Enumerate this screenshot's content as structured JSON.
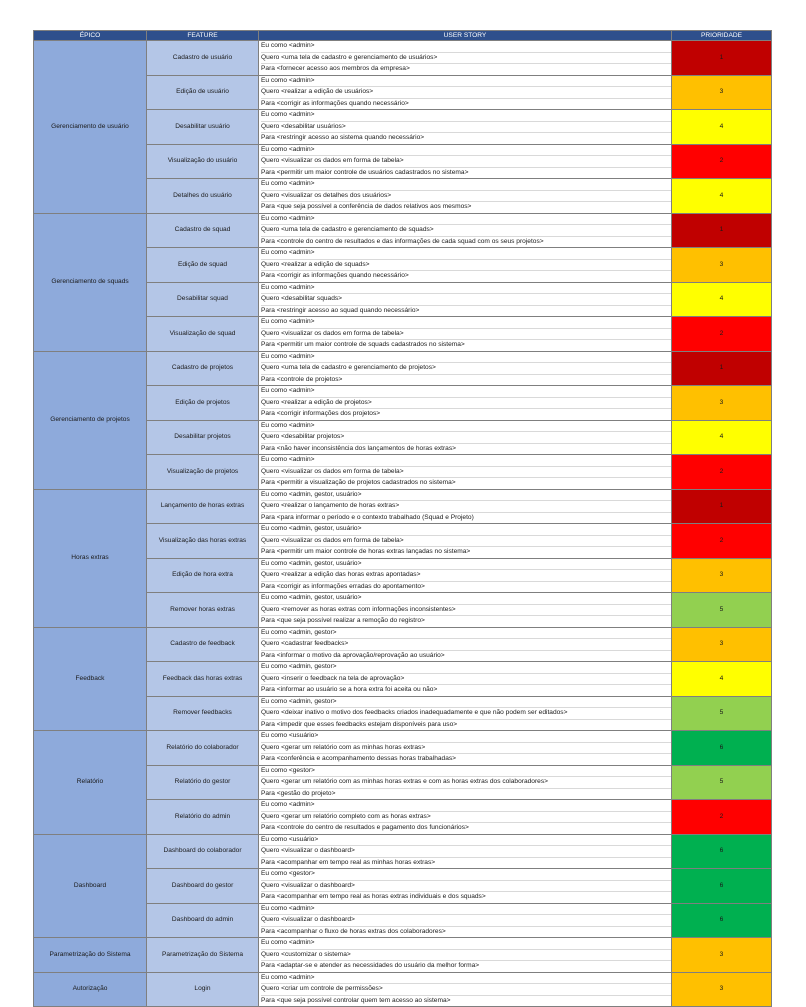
{
  "headers": {
    "epic": "ÉPICO",
    "feature": "FEATURE",
    "story": "USER STORY",
    "priority": "PRIORIDADE"
  },
  "priority_colors": {
    "1": "#c00000",
    "2": "#ff0000",
    "3": "#ffc000",
    "4": "#ffff00",
    "5": "#92d050",
    "6": "#00b050"
  },
  "epics": [
    {
      "name": "Gerenciamento de usuário",
      "items": [
        {
          "feature": "Cadastro de usuário",
          "who": "Eu como <admin>",
          "want": "Quero <uma tela de cadastro e gerenciamento de usuários>",
          "why": "Para <fornecer acesso aos membros da empresa>",
          "priority": "1"
        },
        {
          "feature": "Edição de usuário",
          "who": "Eu como <admin>",
          "want": "Quero <realizar a edição de usuários>",
          "why": "Para <corrigir as informações quando necessário>",
          "priority": "3"
        },
        {
          "feature": "Desabilitar usuário",
          "who": "Eu como <admin>",
          "want": "Quero <desabilitar usuários>",
          "why": "Para <restringir acesso ao sistema quando necessário>",
          "priority": "4"
        },
        {
          "feature": "Visualização do usuário",
          "who": "Eu como <admin>",
          "want": "Quero <visualizar os dados em forma de tabela>",
          "why": "Para <permitir um maior controle de usuários cadastrados no sistema>",
          "priority": "2"
        },
        {
          "feature": "Detalhes do usuário",
          "who": "Eu como <admin>",
          "want": "Quero <visualizar os detalhes dos usuários>",
          "why": "Para <que seja possível a conferência de dados relativos aos mesmos>",
          "priority": "4"
        }
      ]
    },
    {
      "name": "Gerenciamento de squads",
      "items": [
        {
          "feature": "Cadastro de squad",
          "who": "Eu como <admin>",
          "want": "Quero <uma tela de cadastro e gerenciamento de squads>",
          "why": "Para <controle do centro de resultados e das informações de cada squad com os seus projetos>",
          "priority": "1"
        },
        {
          "feature": "Edição de squad",
          "who": "Eu como <admin>",
          "want": "Quero <realizar a edição de squads>",
          "why": "Para <corrigir as informações quando necessário>",
          "priority": "3"
        },
        {
          "feature": "Desabilitar squad",
          "who": "Eu como <admin>",
          "want": "Quero <desabilitar squads>",
          "why": "Para <restringir acesso ao squad quando necessário>",
          "priority": "4"
        },
        {
          "feature": "Visualização de squad",
          "who": "Eu como <admin>",
          "want": "Quero <visualizar os dados em forma de tabela>",
          "why": "Para <permitir um maior controle de squads cadastrados no sistema>",
          "priority": "2"
        }
      ]
    },
    {
      "name": "Gerenciamento de projetos",
      "items": [
        {
          "feature": "Cadastro de projetos",
          "who": "Eu como <admin>",
          "want": "Quero <uma tela de cadastro e gerenciamento de projetos>",
          "why": "Para <controle de projetos>",
          "priority": "1"
        },
        {
          "feature": "Edição de projetos",
          "who": "Eu como <admin>",
          "want": "Quero <realizar a edição de projetos>",
          "why": "Para <corrigir informações dos projetos>",
          "priority": "3"
        },
        {
          "feature": "Desabilitar projetos",
          "who": "Eu como <admin>",
          "want": "Quero <desabilitar projetos>",
          "why": "Para <não haver inconsistência dos lançamentos de horas extras>",
          "priority": "4"
        },
        {
          "feature": "Visualização de projetos",
          "who": "Eu como <admin>",
          "want": "Quero <visualizar os dados em forma de tabela>",
          "why": "Para <permitir a visualização de projetos cadastrados no sistema>",
          "priority": "2"
        }
      ]
    },
    {
      "name": "Horas extras",
      "items": [
        {
          "feature": "Lançamento de horas extras",
          "who": "Eu como <admin, gestor, usuário>",
          "want": "Quero <realizar o lançamento de horas extras>",
          "why": "Para <para informar o período e o contexto trabalhado (Squad e Projeto)",
          "priority": "1"
        },
        {
          "feature": "Visualização das horas extras",
          "who": "Eu como <admin, gestor, usuário>",
          "want": "Quero <visualizar os dados em forma de tabela>",
          "why": "Para <permitir um maior controle de horas extras lançadas no sistema>",
          "priority": "2"
        },
        {
          "feature": "Edição de hora extra",
          "who": "Eu como <admin, gestor, usuário>",
          "want": "Quero <realizar a edição das horas extras apontadas>",
          "why": "Para <corrigir as informações erradas do apontamento>",
          "priority": "3"
        },
        {
          "feature": "Remover horas extras",
          "who": "Eu como <admin, gestor, usuário>",
          "want": "Quero <remover as horas extras com informações inconsistentes>",
          "why": "Para <que seja possível realizar a remoção do registro>",
          "priority": "5"
        }
      ]
    },
    {
      "name": "Feedback",
      "items": [
        {
          "feature": "Cadastro de feedback",
          "who": "Eu como <admin, gestor>",
          "want": "Quero <cadastrar feedbacks>",
          "why": "Para <informar o motivo da aprovação/reprovação ao usuário>",
          "priority": "3"
        },
        {
          "feature": "Feedback das horas extras",
          "who": "Eu como <admin, gestor>",
          "want": "Quero <inserir o feedback na tela de aprovação>",
          "why": "Para <informar ao usuário se a hora extra foi aceita ou não>",
          "priority": "4"
        },
        {
          "feature": "Remover feedbacks",
          "who": "Eu como <admin, gestor>",
          "want": "Quero <deixar inativo o motivo dos feedbacks criados inadequadamente e que não podem ser editados>",
          "why": "Para <impedir que esses feedbacks estejam disponíveis para uso>",
          "priority": "5"
        }
      ]
    },
    {
      "name": "Relatório",
      "items": [
        {
          "feature": "Relatório do colaborador",
          "who": "Eu como <usuário>",
          "want": "Quero <gerar um relatório com as minhas horas extras>",
          "why": "Para <conferência e acompanhamento dessas horas trabalhadas>",
          "priority": "6"
        },
        {
          "feature": "Relatório do gestor",
          "who": "Eu como <gestor>",
          "want": "Quero <gerar um relatório com as minhas horas extras e com as horas extras dos colaboradores>",
          "why": "Para <gestão do projeto>",
          "priority": "5"
        },
        {
          "feature": "Relatório do admin",
          "who": "Eu como <admin>",
          "want": "Quero <gerar um relatório completo com as horas extras>",
          "why": "Para <controle do centro de resultados e pagamento dos funcionários>",
          "priority": "2"
        }
      ]
    },
    {
      "name": "Dashboard",
      "items": [
        {
          "feature": "Dashboard do colaborador",
          "who": "Eu como <usuário>",
          "want": "Quero <visualizar o dashboard>",
          "why": "Para <acompanhar em tempo real as minhas horas extras>",
          "priority": "6"
        },
        {
          "feature": "Dashboard do gestor",
          "who": "Eu como <gestor>",
          "want": "Quero <visualizar o dashboard>",
          "why": "Para <acompanhar em tempo real as horas extras individuais e dos squads>",
          "priority": "6"
        },
        {
          "feature": "Dashboard do admin",
          "who": "Eu como <admin>",
          "want": "Quero <visualizar o dashboard>",
          "why": "Para <acompanhar o fluxo de horas extras dos colaboradores>",
          "priority": "6"
        }
      ]
    },
    {
      "name": "Parametrização do Sistema",
      "items": [
        {
          "feature": "Parametrização do Sistema",
          "who": "Eu como <admin>",
          "want": "Quero <customizar o sistema>",
          "why": "Para <adaptar-se e atender as necessidades do usuário da melhor forma>",
          "priority": "3"
        }
      ]
    },
    {
      "name": "Autorização",
      "items": [
        {
          "feature": "Login",
          "who": "Eu como <admin>",
          "want": "Quero <criar um controle de permissões>",
          "why": "Para <que seja possível controlar quem tem acesso ao sistema>",
          "priority": "3"
        }
      ]
    }
  ]
}
